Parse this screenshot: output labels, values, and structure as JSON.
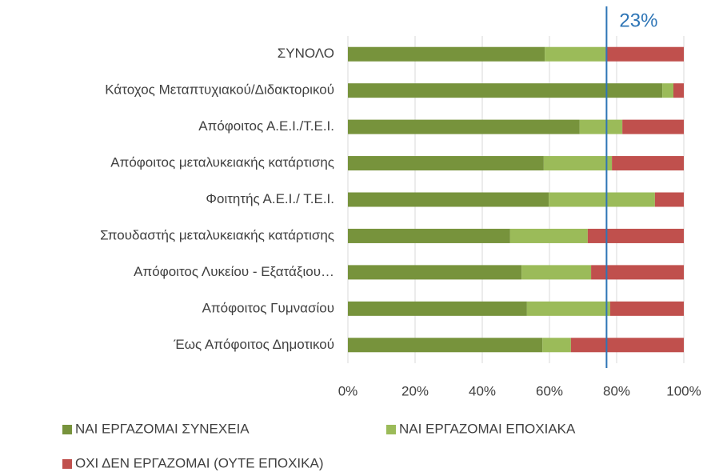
{
  "chart_data": {
    "type": "stacked_barh",
    "categories": [
      "ΣΥΝΟΛΟ",
      "Κάτοχος Μεταπτυχιακού/Διδακτορικού",
      "Απόφοιτος Α.Ε.Ι./Τ.Ε.Ι.",
      "Απόφοιτος μεταλυκειακής κατάρτισης",
      "Φοιτητής Α.Ε.Ι./ Τ.Ε.Ι.",
      "Σπουδαστής μεταλυκειακής κατάρτισης",
      "Απόφοιτος Λυκείου - Εξατάξιου…",
      "Απόφοιτος Γυμνασίου",
      "Έως Απόφοιτος Δημοτικού"
    ],
    "series": [
      {
        "name": "ΝΑΙ ΕΡΓΑΖΟΜΑΙ ΣΥΝΕΧΕΙΑ",
        "color": "#77933c",
        "values": [
          58.6,
          93.6,
          69.0,
          58.3,
          59.8,
          48.3,
          51.7,
          53.3,
          57.9
        ]
      },
      {
        "name": "ΝΑΙ ΕΡΓΑΖΟΜΑΙ ΕΠΟΧΙΑΚΑ",
        "color": "#9bbb59",
        "values": [
          18.1,
          3.3,
          12.7,
          20.3,
          31.6,
          23.1,
          20.7,
          24.8,
          8.5
        ]
      },
      {
        "name": "ΟΧΙ ΔΕΝ ΕΡΓΑΖΟΜΑΙ (ΟΥΤΕ ΕΠΟΧΙΚΑ)",
        "color": "#c0504d",
        "values": [
          23.3,
          3.1,
          18.3,
          21.4,
          8.6,
          28.6,
          27.6,
          21.9,
          33.6
        ]
      }
    ],
    "xlim": [
      0,
      100
    ],
    "xticks": [
      {
        "value": 0,
        "label": "0%"
      },
      {
        "value": 20,
        "label": "20%"
      },
      {
        "value": 40,
        "label": "40%"
      },
      {
        "value": 60,
        "label": "60%"
      },
      {
        "value": 80,
        "label": "80%"
      },
      {
        "value": 100,
        "label": "100%"
      }
    ],
    "grid": true,
    "reference_line": {
      "value": 77,
      "color": "#2e75b6",
      "label": "23%"
    },
    "legend": "bottom"
  }
}
